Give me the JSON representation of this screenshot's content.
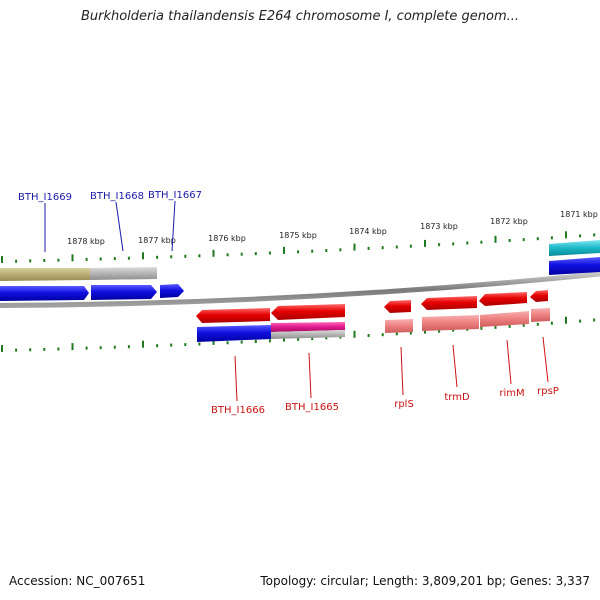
{
  "title": "Burkholderia thailandensis E264 chromosome I, complete genom...",
  "footer": {
    "accession": "Accession: NC_007651",
    "summary": "Topology: circular; Length: 3,809,201 bp; Genes: 3,337"
  },
  "colors": {
    "backbone": "#8a8a8a",
    "tick": "#1f7a1f",
    "forward_label": "#1a1aa8",
    "reverse_label": "#cc1111",
    "gene_red": "#e60000",
    "gene_blue": "#1010e0",
    "gene_cyan": "#1ab8c8",
    "cds_pink": "#ee7f7f",
    "cds_grey": "#b4b4b4",
    "cds_olive": "#b7ad72",
    "cds_magenta": "#e0188c"
  },
  "scale_labels": [
    "1878 kbp",
    "1877 kbp",
    "1876 kbp",
    "1875 kbp",
    "1874 kbp",
    "1873 kbp",
    "1872 kbp",
    "1871 kbp"
  ],
  "genes": [
    {
      "name": "BTH_I1669",
      "strand": "forward"
    },
    {
      "name": "BTH_I1668",
      "strand": "forward"
    },
    {
      "name": "BTH_I1667",
      "strand": "forward"
    },
    {
      "name": "BTH_I1666",
      "strand": "reverse"
    },
    {
      "name": "BTH_I1665",
      "strand": "reverse"
    },
    {
      "name": "rplS",
      "strand": "reverse"
    },
    {
      "name": "trmD",
      "strand": "reverse"
    },
    {
      "name": "rimM",
      "strand": "reverse"
    },
    {
      "name": "rpsP",
      "strand": "reverse"
    }
  ]
}
